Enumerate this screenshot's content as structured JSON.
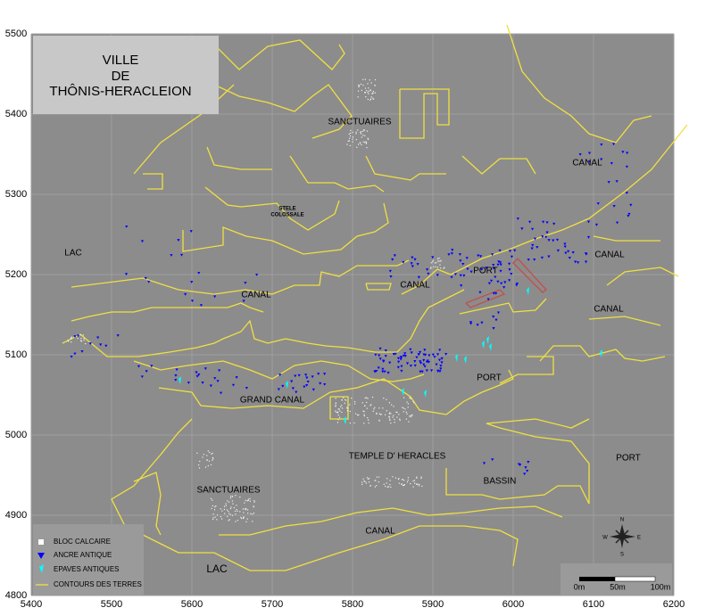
{
  "map": {
    "title": [
      "VILLE",
      "DE",
      "THÔNIS-HERACLEION"
    ],
    "xlim": [
      5400,
      6200
    ],
    "ylim": [
      4800,
      5500
    ],
    "xticks": [
      5400,
      5500,
      5600,
      5700,
      5800,
      5900,
      6000,
      6100,
      6200
    ],
    "yticks": [
      4800,
      4900,
      5000,
      5100,
      5200,
      5300,
      5400,
      5500
    ],
    "places": [
      "SANCTUAIRES",
      "STELE",
      "COLOSSALE",
      "LAC",
      "CANAL",
      "CANAL",
      "PORT",
      "CANAL",
      "CANAL",
      "CANAL",
      "PORT",
      "GRAND CANAL",
      "TEMPLE D' HERACLES",
      "BASSIN",
      "PORT",
      "SANCTUAIRES",
      "CANAL",
      "LAC"
    ],
    "legend": [
      "BLOC CALCAIRE",
      "ANCRE ANTIQUE",
      "EPAVES ANTIQUES",
      "CONTOURS DES TERRES"
    ],
    "scale_bar": [
      "0m",
      "50m",
      "100m"
    ],
    "compass": [
      "N",
      "E",
      "S",
      "W"
    ]
  }
}
